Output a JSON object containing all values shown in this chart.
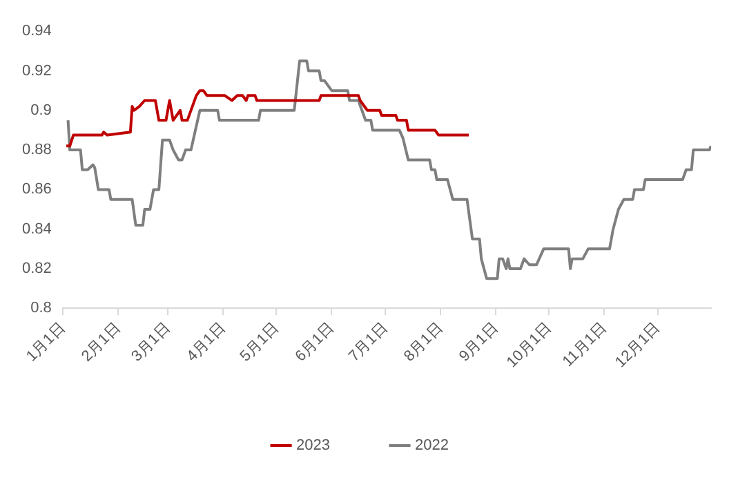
{
  "chart_data": {
    "type": "line",
    "xlim": [
      "--01-01",
      "--12-31"
    ],
    "xticks": [
      {
        "value": "--01-01",
        "label": "1月1日"
      },
      {
        "value": "--02-01",
        "label": "2月1日"
      },
      {
        "value": "--03-01",
        "label": "3月1日"
      },
      {
        "value": "--04-01",
        "label": "4月1日"
      },
      {
        "value": "--05-01",
        "label": "5月1日"
      },
      {
        "value": "--06-01",
        "label": "6月1日"
      },
      {
        "value": "--07-01",
        "label": "7月1日"
      },
      {
        "value": "--08-01",
        "label": "8月1日"
      },
      {
        "value": "--09-01",
        "label": "9月1日"
      },
      {
        "value": "--10-01",
        "label": "10月1日"
      },
      {
        "value": "--11-01",
        "label": "11月1日"
      },
      {
        "value": "--12-01",
        "label": "12月1日"
      }
    ],
    "ylim": [
      0.8,
      0.94
    ],
    "yticks": [
      0.8,
      0.82,
      0.84,
      0.86,
      0.88,
      0.9,
      0.92,
      0.94
    ],
    "grid": false,
    "legend": "bottom",
    "marker": "none",
    "line_style": "solid",
    "series": [
      {
        "name": "2023",
        "color": "#c00000",
        "x": [
          "--01-03",
          "--01-05",
          "--01-07",
          "--01-23",
          "--01-24",
          "--01-26",
          "--02-08",
          "--02-09",
          "--02-10",
          "--02-13",
          "--02-16",
          "--02-22",
          "--02-24",
          "--02-28",
          "--03-02",
          "--03-04",
          "--03-08",
          "--03-09",
          "--03-12",
          "--03-17",
          "--03-19",
          "--03-21",
          "--03-23",
          "--04-02",
          "--04-06",
          "--04-09",
          "--04-12",
          "--04-14",
          "--04-15",
          "--04-19",
          "--04-20",
          "--05-25",
          "--05-26",
          "--06-16",
          "--06-17",
          "--06-21",
          "--06-28",
          "--06-29",
          "--07-07",
          "--07-08",
          "--07-13",
          "--07-14",
          "--07-29",
          "--07-31",
          "--08-17"
        ],
        "values": [
          0.882,
          0.882,
          0.8875,
          0.8875,
          0.889,
          0.8875,
          0.889,
          0.902,
          0.9,
          0.902,
          0.905,
          0.905,
          0.895,
          0.895,
          0.905,
          0.895,
          0.9,
          0.895,
          0.895,
          0.9075,
          0.91,
          0.91,
          0.9075,
          0.9075,
          0.905,
          0.9075,
          0.9075,
          0.905,
          0.9075,
          0.9075,
          0.905,
          0.905,
          0.9075,
          0.9075,
          0.905,
          0.9,
          0.9,
          0.8975,
          0.8975,
          0.895,
          0.895,
          0.89,
          0.89,
          0.8875,
          0.8875
        ]
      },
      {
        "name": "2022",
        "color": "#7f7f7f",
        "x": [
          "--01-04",
          "--01-05",
          "--01-11",
          "--01-12",
          "--01-15",
          "--01-18",
          "--01-19",
          "--01-21",
          "--01-27",
          "--01-28",
          "--02-09",
          "--02-11",
          "--02-15",
          "--02-16",
          "--02-19",
          "--02-21",
          "--02-24",
          "--02-26",
          "--03-02",
          "--03-04",
          "--03-07",
          "--03-09",
          "--03-11",
          "--03-14",
          "--03-19",
          "--03-29",
          "--03-30",
          "--04-21",
          "--04-22",
          "--05-11",
          "--05-14",
          "--05-18",
          "--05-19",
          "--05-25",
          "--05-26",
          "--05-28",
          "--06-01",
          "--06-10",
          "--06-11",
          "--06-16",
          "--06-18",
          "--06-20",
          "--06-23",
          "--06-24",
          "--07-09",
          "--07-11",
          "--07-14",
          "--07-26",
          "--07-27",
          "--07-29",
          "--07-30",
          "--08-05",
          "--08-08",
          "--08-16",
          "--08-19",
          "--08-23",
          "--08-24",
          "--08-27",
          "--09-02",
          "--09-03",
          "--09-05",
          "--09-07",
          "--09-08",
          "--09-09",
          "--09-15",
          "--09-17",
          "--09-20",
          "--09-24",
          "--09-28",
          "--10-12",
          "--10-13",
          "--10-14",
          "--10-20",
          "--10-23",
          "--11-04",
          "--11-06",
          "--11-09",
          "--11-12",
          "--11-17",
          "--11-18",
          "--11-23",
          "--11-24",
          "--12-15",
          "--12-17",
          "--12-20",
          "--12-21",
          "--12-30",
          "--12-31"
        ],
        "values": [
          0.895,
          0.88,
          0.88,
          0.87,
          0.87,
          0.8725,
          0.871,
          0.86,
          0.86,
          0.855,
          0.855,
          0.842,
          0.842,
          0.85,
          0.85,
          0.86,
          0.86,
          0.885,
          0.885,
          0.88,
          0.875,
          0.875,
          0.88,
          0.88,
          0.9,
          0.9,
          0.895,
          0.895,
          0.9,
          0.9,
          0.925,
          0.925,
          0.92,
          0.92,
          0.915,
          0.915,
          0.91,
          0.91,
          0.905,
          0.905,
          0.9,
          0.895,
          0.895,
          0.89,
          0.89,
          0.886,
          0.875,
          0.875,
          0.87,
          0.87,
          0.865,
          0.865,
          0.855,
          0.855,
          0.835,
          0.835,
          0.825,
          0.815,
          0.815,
          0.825,
          0.825,
          0.82,
          0.825,
          0.82,
          0.82,
          0.825,
          0.822,
          0.822,
          0.83,
          0.83,
          0.82,
          0.825,
          0.825,
          0.83,
          0.83,
          0.84,
          0.85,
          0.855,
          0.855,
          0.86,
          0.86,
          0.865,
          0.865,
          0.87,
          0.87,
          0.88,
          0.88,
          0.882
        ]
      }
    ]
  }
}
